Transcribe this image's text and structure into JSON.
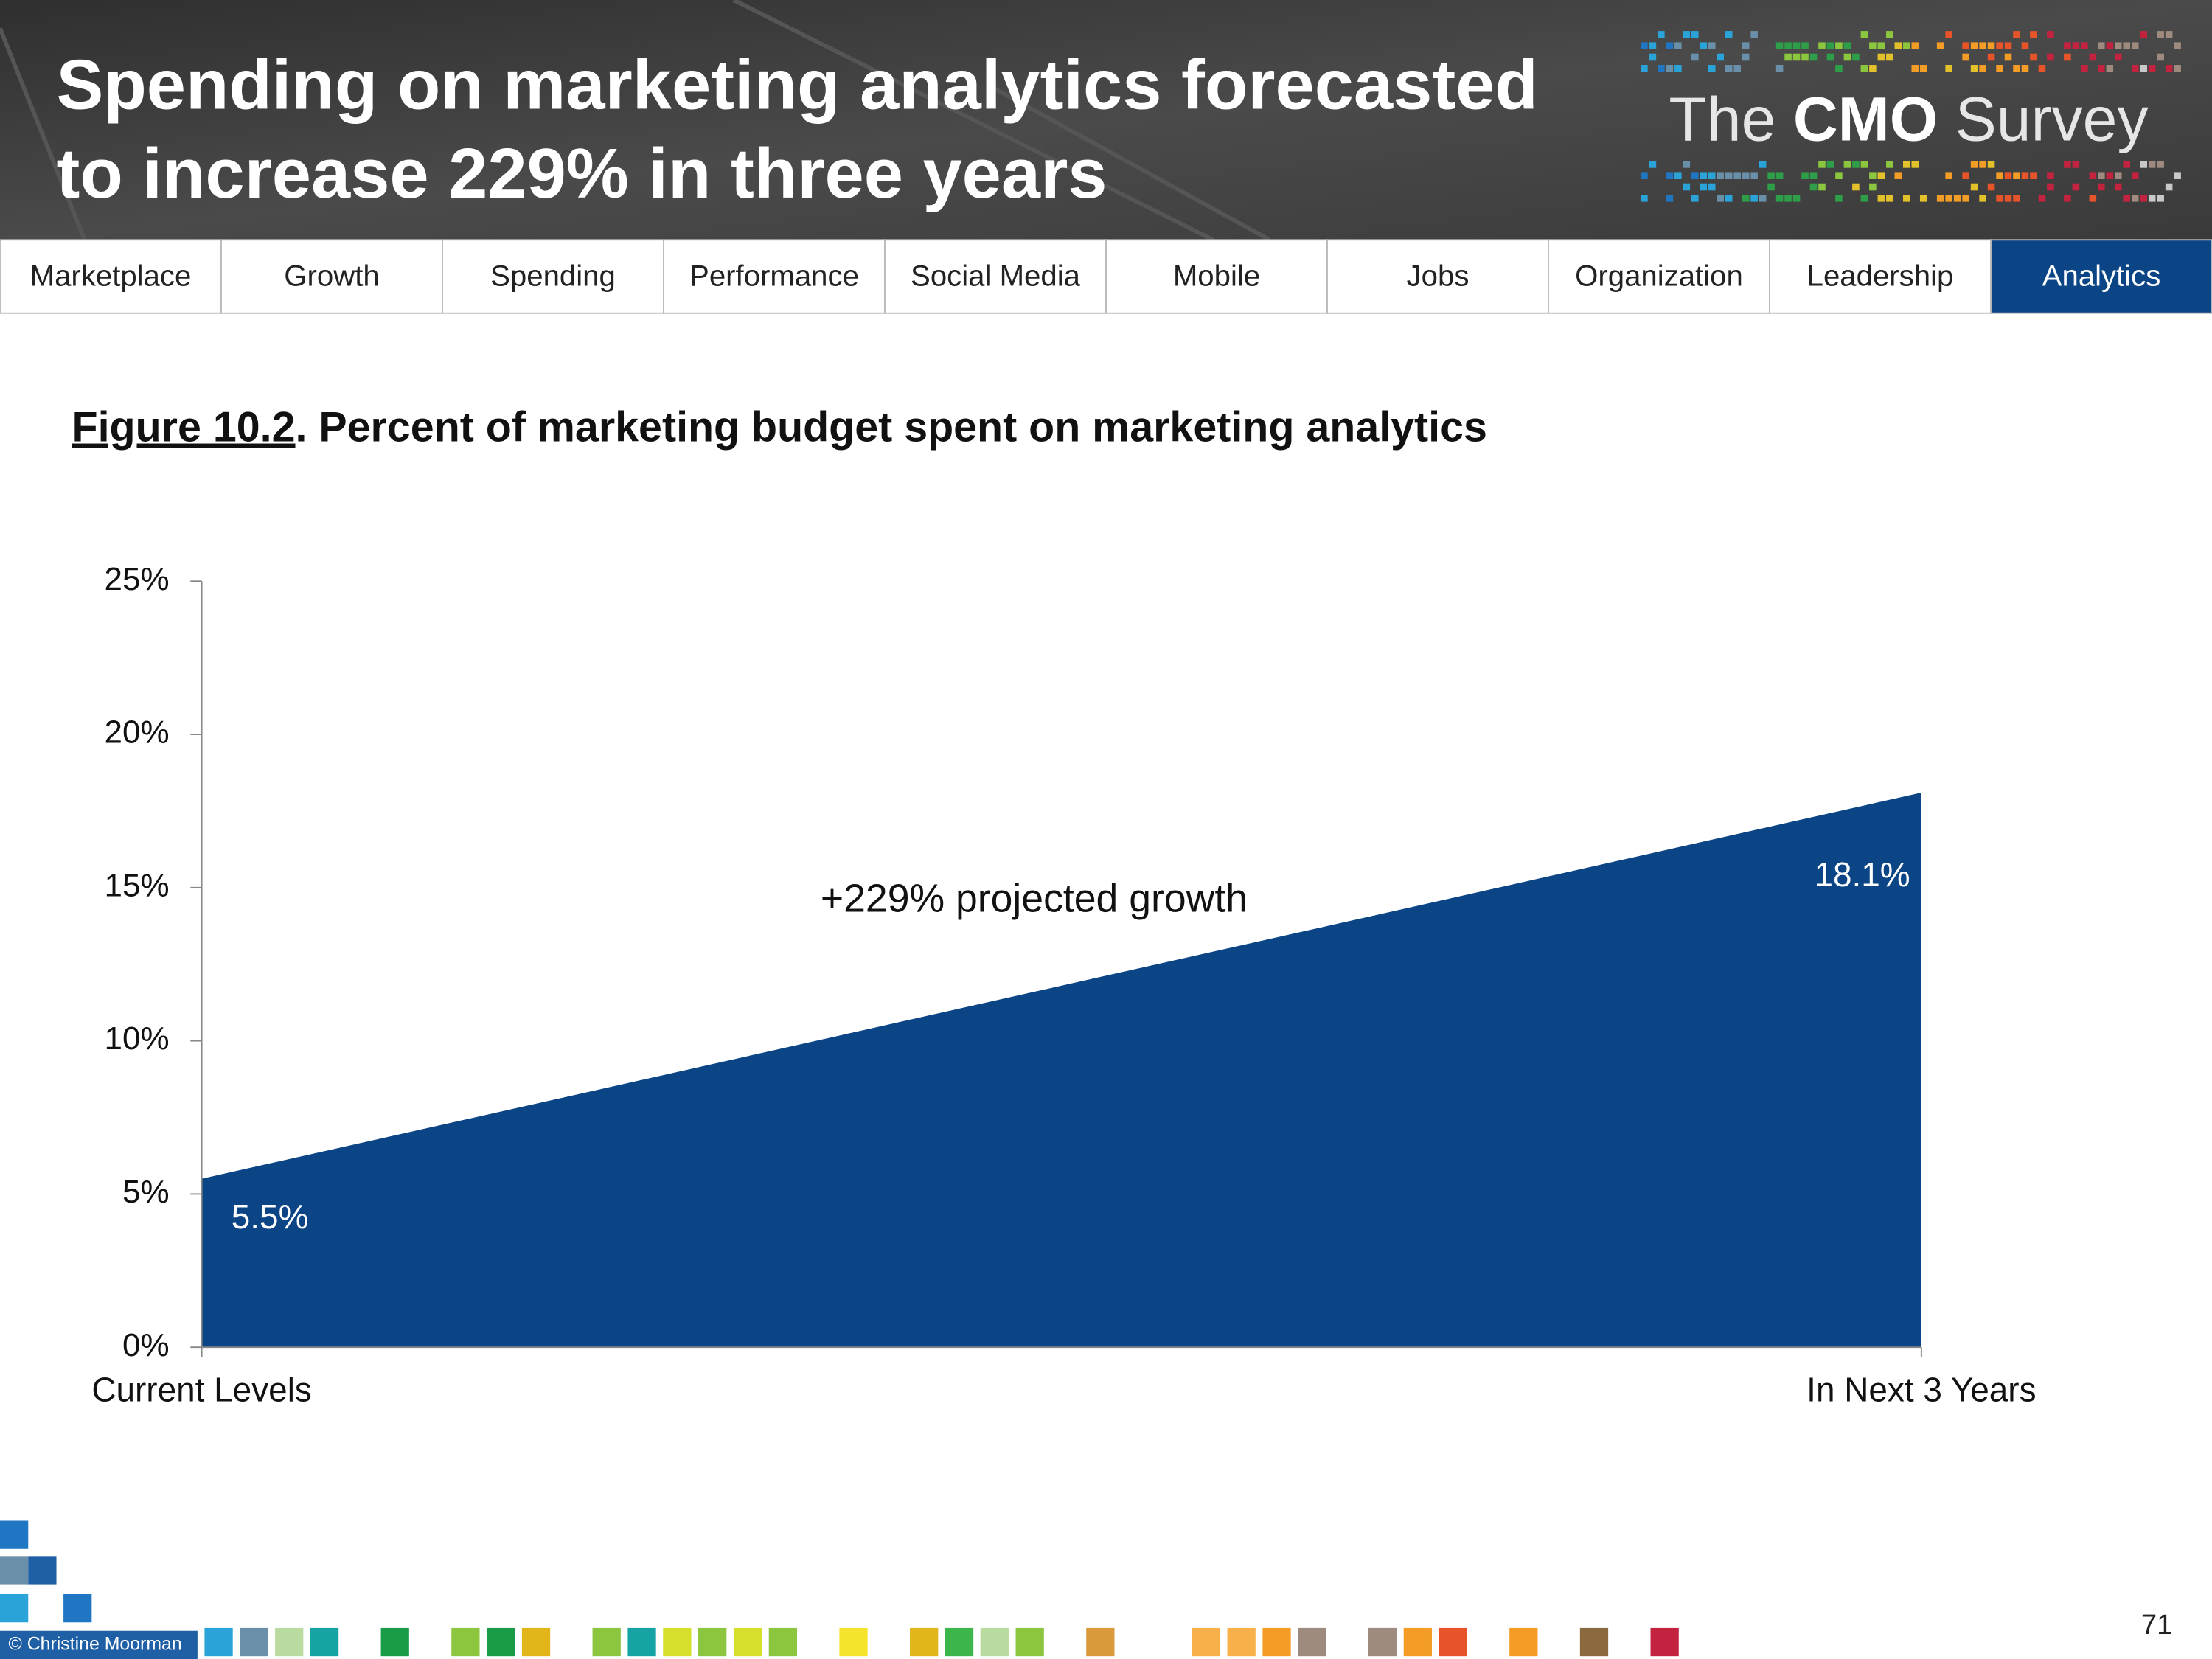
{
  "header": {
    "title": [
      "Spending on marketing analytics forecasted",
      "to increase 229% in three years"
    ],
    "logo": [
      "The",
      "CMO",
      "Survey"
    ]
  },
  "nav": {
    "tabs": [
      "Marketplace",
      "Growth",
      "Spending",
      "Performance",
      "Social Media",
      "Mobile",
      "Jobs",
      "Organization",
      "Leadership",
      "Analytics"
    ],
    "active": 9
  },
  "chart_data": {
    "type": "area",
    "figure_label": "Figure 10.2",
    "title": ". Percent of marketing budget spent on marketing analytics",
    "categories": [
      "Current Levels",
      "In Next 3 Years"
    ],
    "values": [
      5.5,
      18.1
    ],
    "value_labels": [
      "5.5%",
      "18.1%"
    ],
    "color": "#0b4586",
    "ylim": [
      0,
      25
    ],
    "yticks": [
      {
        "value": 0,
        "label": "0%"
      },
      {
        "value": 5,
        "label": "5%"
      },
      {
        "value": 10,
        "label": "10%"
      },
      {
        "value": 15,
        "label": "15%"
      },
      {
        "value": 20,
        "label": "20%"
      },
      {
        "value": 25,
        "label": "25%"
      }
    ],
    "annotation": "+229% projected growth"
  },
  "footer": {
    "copyright": "© Christine Moorman",
    "page_number": "71"
  }
}
